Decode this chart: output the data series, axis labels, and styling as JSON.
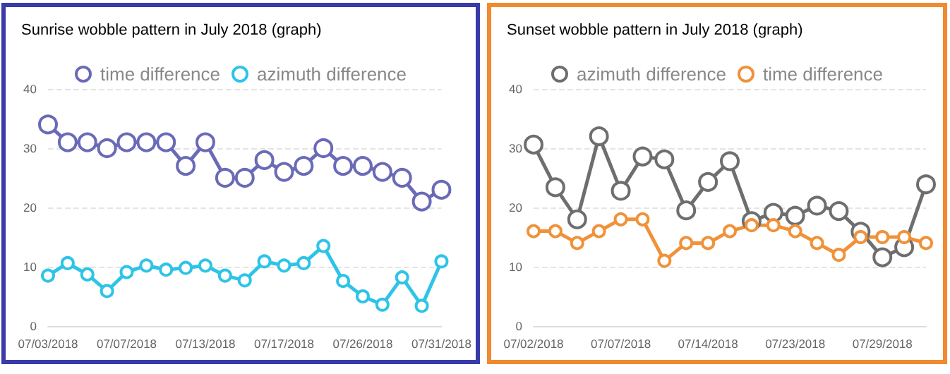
{
  "chart_data": [
    {
      "type": "line",
      "title": "Sunrise wobble pattern in July 2018 (graph)",
      "categories": [
        "07/03/2018",
        null,
        null,
        null,
        "07/07/2018",
        null,
        null,
        null,
        "07/13/2018",
        null,
        null,
        null,
        "07/17/2018",
        null,
        null,
        null,
        "07/26/2018",
        null,
        null,
        null,
        "07/31/2018"
      ],
      "series": [
        {
          "name": "time difference",
          "color": "#6a6ab8",
          "values": [
            34,
            31,
            31,
            30,
            31,
            31,
            31,
            27,
            31,
            25,
            25,
            28,
            26,
            27,
            30,
            27,
            27,
            26,
            25,
            21,
            23
          ]
        },
        {
          "name": "azimuth difference",
          "color": "#2ec4e8",
          "values": [
            8.5,
            10.6,
            8.7,
            5.9,
            9.1,
            10.2,
            9.5,
            9.8,
            10.2,
            8.5,
            7.7,
            10.9,
            10.2,
            10.6,
            13.5,
            7.6,
            5.0,
            3.6,
            8.2,
            3.4,
            10.9
          ]
        }
      ],
      "ylim": [
        0,
        40
      ],
      "yticks": [
        0,
        10,
        20,
        30,
        40
      ],
      "grid": "y",
      "legend": "top",
      "marker": "circle",
      "line_style": "solid"
    },
    {
      "type": "line",
      "title": "Sunset wobble pattern in July 2018 (graph)",
      "categories": [
        "07/02/2018",
        null,
        null,
        null,
        "07/07/2018",
        null,
        null,
        null,
        "07/14/2018",
        null,
        null,
        null,
        "07/23/2018",
        null,
        null,
        null,
        "07/29/2018",
        null,
        null
      ],
      "series": [
        {
          "name": "azimuth difference",
          "color": "#6e6e6e",
          "values": [
            30.6,
            23.4,
            18.0,
            32.0,
            22.8,
            28.6,
            28.1,
            19.5,
            24.3,
            27.8,
            17.7,
            19.1,
            18.6,
            20.3,
            19.4,
            15.9,
            11.6,
            13.3,
            23.9
          ]
        },
        {
          "name": "time difference",
          "color": "#f0923a",
          "values": [
            16,
            16,
            14,
            16,
            18,
            18,
            11,
            14,
            14,
            16,
            17,
            17,
            16,
            14,
            12,
            15,
            15,
            15,
            14
          ]
        }
      ],
      "ylim": [
        0,
        40
      ],
      "yticks": [
        0,
        10,
        20,
        30,
        40
      ],
      "grid": "y",
      "legend": "top",
      "marker": "circle",
      "line_style": "solid"
    }
  ]
}
